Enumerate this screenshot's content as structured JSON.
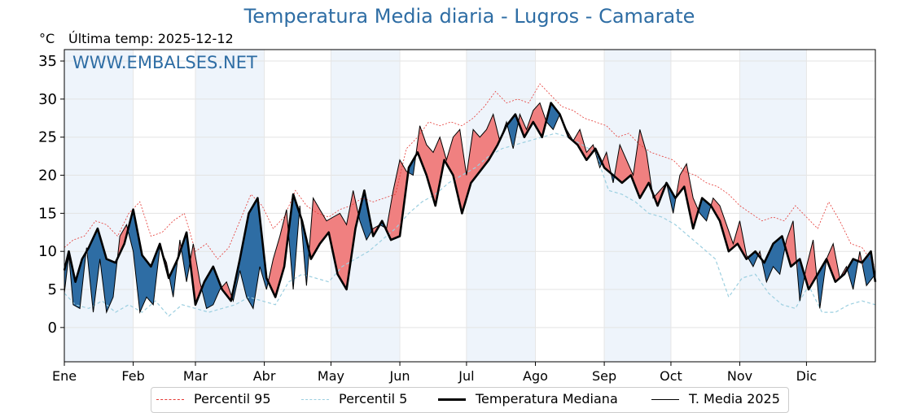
{
  "title": "Temperatura Media diaria - Lugros - Camarate",
  "unit_label": "°C",
  "last_temp_label": "Última temp: 2025-12-12",
  "watermark": "WWW.EMBALSES.NET",
  "colors": {
    "title": "#2e6da4",
    "p95": "#e53935",
    "p5": "#9ccfe0",
    "median": "#000000",
    "current": "#000000",
    "fill_above": "#f08080",
    "fill_below": "#2e6da4",
    "band": "#eef4fb"
  },
  "legend": {
    "p95": "Percentil 95",
    "p5": "Percentil 5",
    "median": "Temperatura Mediana",
    "current": "T. Media 2025"
  },
  "chart_data": {
    "type": "line",
    "title": "Temperatura Media diaria - Lugros - Camarate",
    "ylabel": "°C",
    "ylim": [
      -4.5,
      36.5
    ],
    "yticks": [
      0,
      5,
      10,
      15,
      20,
      25,
      30,
      35
    ],
    "xlim": [
      1,
      366
    ],
    "month_ticks": [
      {
        "label": "Ene",
        "day": 1
      },
      {
        "label": "Feb",
        "day": 32
      },
      {
        "label": "Mar",
        "day": 60
      },
      {
        "label": "Abr",
        "day": 91
      },
      {
        "label": "May",
        "day": 121
      },
      {
        "label": "Jun",
        "day": 152
      },
      {
        "label": "Jul",
        "day": 182
      },
      {
        "label": "Ago",
        "day": 213
      },
      {
        "label": "Sep",
        "day": 244
      },
      {
        "label": "Oct",
        "day": 274
      },
      {
        "label": "Nov",
        "day": 305
      },
      {
        "label": "Dic",
        "day": 335
      }
    ],
    "grid": true,
    "legend_position": "bottom",
    "series": [
      {
        "name": "Temperatura Mediana",
        "x": [
          1,
          3,
          6,
          9,
          12,
          16,
          20,
          24,
          28,
          32,
          36,
          40,
          44,
          48,
          52,
          56,
          60,
          64,
          68,
          72,
          76,
          80,
          84,
          88,
          92,
          96,
          100,
          104,
          108,
          112,
          116,
          120,
          124,
          128,
          132,
          136,
          140,
          144,
          148,
          152,
          156,
          160,
          164,
          168,
          172,
          176,
          180,
          184,
          188,
          192,
          196,
          200,
          204,
          208,
          212,
          216,
          220,
          224,
          228,
          232,
          236,
          240,
          244,
          248,
          252,
          256,
          260,
          264,
          268,
          272,
          276,
          280,
          284,
          288,
          292,
          296,
          300,
          304,
          308,
          312,
          316,
          320,
          324,
          328,
          332,
          336,
          340,
          344,
          348,
          352,
          356,
          360,
          364,
          366
        ],
        "y": [
          7.5,
          10.0,
          6.0,
          9.0,
          10.5,
          13.0,
          9.0,
          8.5,
          11.0,
          15.5,
          9.5,
          8.0,
          11.0,
          6.5,
          9.0,
          12.5,
          3.0,
          6.0,
          8.0,
          5.0,
          3.5,
          9.0,
          15.0,
          17.0,
          6.5,
          4.0,
          8.0,
          17.5,
          14.0,
          9.0,
          11.0,
          12.5,
          7.0,
          5.0,
          13.0,
          18.0,
          12.0,
          14.0,
          11.5,
          12.0,
          21.0,
          23.0,
          20.0,
          16.0,
          22.0,
          20.0,
          15.0,
          19.0,
          20.5,
          22.0,
          24.0,
          26.5,
          28.0,
          25.0,
          27.0,
          25.0,
          29.5,
          28.0,
          25.0,
          24.0,
          22.0,
          23.5,
          21.0,
          20.0,
          19.0,
          20.0,
          17.0,
          19.0,
          16.0,
          19.0,
          17.0,
          18.5,
          13.0,
          17.0,
          16.0,
          14.0,
          10.0,
          11.0,
          9.0,
          10.0,
          8.5,
          11.0,
          12.0,
          8.0,
          9.0,
          5.0,
          7.0,
          9.0,
          6.0,
          7.0,
          9.0,
          8.5,
          10.0,
          6.0
        ]
      },
      {
        "name": "T. Media 2025",
        "x": [
          1,
          3,
          5,
          8,
          11,
          14,
          17,
          20,
          23,
          26,
          29,
          32,
          35,
          38,
          41,
          44,
          47,
          50,
          53,
          56,
          59,
          62,
          65,
          68,
          71,
          74,
          77,
          80,
          83,
          86,
          89,
          92,
          95,
          98,
          101,
          104,
          107,
          110,
          113,
          116,
          119,
          122,
          125,
          128,
          131,
          134,
          137,
          140,
          143,
          146,
          149,
          152,
          155,
          158,
          161,
          164,
          167,
          170,
          173,
          176,
          179,
          182,
          185,
          188,
          191,
          194,
          197,
          200,
          203,
          206,
          209,
          212,
          215,
          218,
          221,
          224,
          227,
          230,
          233,
          236,
          239,
          242,
          245,
          248,
          251,
          254,
          257,
          260,
          263,
          266,
          269,
          272,
          275,
          278,
          281,
          284,
          287,
          290,
          293,
          296,
          299,
          302,
          305,
          308,
          311,
          314,
          317,
          320,
          323,
          326,
          329,
          332,
          335,
          338,
          341,
          344,
          347,
          350,
          353,
          356,
          359,
          362,
          366
        ],
        "y": [
          4.5,
          9.5,
          3.0,
          2.5,
          10.5,
          2.0,
          9.0,
          2.0,
          4.0,
          12.0,
          13.5,
          10.0,
          2.0,
          4.0,
          3.0,
          10.5,
          8.5,
          4.0,
          11.5,
          6.0,
          11.0,
          6.0,
          2.5,
          3.0,
          5.0,
          6.0,
          3.5,
          7.5,
          4.0,
          2.5,
          8.0,
          5.0,
          9.0,
          12.0,
          15.5,
          5.0,
          16.0,
          5.5,
          17.0,
          15.5,
          14.0,
          14.5,
          15.0,
          13.5,
          18.0,
          14.0,
          11.5,
          13.0,
          13.5,
          13.0,
          18.0,
          22.0,
          20.5,
          20.0,
          26.5,
          24.0,
          23.0,
          25.0,
          22.0,
          25.0,
          26.0,
          20.0,
          26.0,
          25.0,
          26.0,
          28.0,
          24.5,
          27.0,
          23.5,
          28.0,
          26.0,
          28.5,
          29.5,
          27.0,
          26.0,
          28.0,
          26.0,
          24.5,
          26.0,
          23.0,
          24.0,
          21.0,
          23.0,
          19.0,
          24.0,
          22.0,
          20.0,
          26.0,
          23.0,
          17.0,
          18.0,
          19.0,
          15.0,
          20.0,
          21.5,
          17.0,
          15.0,
          14.0,
          17.0,
          16.0,
          13.5,
          11.0,
          14.0,
          9.5,
          8.0,
          10.0,
          6.0,
          8.0,
          7.0,
          11.5,
          14.0,
          3.5,
          8.0,
          11.5,
          2.5,
          9.0,
          11.0,
          6.5,
          8.0,
          5.0,
          10.0,
          5.5,
          7.0
        ]
      },
      {
        "name": "Percentil 95",
        "x": [
          1,
          5,
          10,
          15,
          20,
          25,
          30,
          35,
          40,
          45,
          50,
          55,
          60,
          65,
          70,
          75,
          80,
          85,
          90,
          95,
          100,
          105,
          110,
          115,
          120,
          125,
          130,
          135,
          140,
          145,
          150,
          155,
          160,
          165,
          170,
          175,
          180,
          185,
          190,
          195,
          200,
          205,
          210,
          215,
          220,
          225,
          230,
          235,
          240,
          245,
          250,
          255,
          260,
          265,
          270,
          275,
          280,
          285,
          290,
          295,
          300,
          305,
          310,
          315,
          320,
          325,
          330,
          335,
          340,
          345,
          350,
          355,
          360,
          366
        ],
        "y": [
          10.5,
          11.5,
          12.0,
          14.0,
          13.5,
          12.0,
          15.0,
          16.5,
          12.0,
          12.5,
          14.0,
          15.0,
          10.0,
          11.0,
          9.0,
          10.5,
          14.0,
          17.5,
          16.0,
          13.0,
          14.5,
          18.0,
          16.0,
          15.0,
          14.5,
          15.5,
          16.0,
          17.0,
          16.5,
          17.0,
          17.5,
          23.5,
          25.0,
          27.0,
          26.5,
          27.0,
          26.5,
          27.5,
          29.0,
          31.0,
          29.5,
          30.0,
          29.5,
          32.0,
          30.5,
          29.0,
          28.5,
          27.5,
          27.0,
          26.5,
          25.0,
          25.5,
          24.0,
          23.0,
          22.5,
          22.0,
          20.5,
          20.0,
          19.0,
          18.5,
          17.5,
          16.0,
          15.0,
          14.0,
          14.5,
          14.0,
          16.0,
          14.5,
          13.0,
          16.5,
          14.0,
          11.0,
          10.5,
          8.0
        ]
      },
      {
        "name": "Percentil 5",
        "x": [
          1,
          6,
          12,
          18,
          24,
          30,
          36,
          42,
          48,
          54,
          60,
          66,
          72,
          78,
          84,
          90,
          96,
          102,
          108,
          114,
          120,
          126,
          132,
          138,
          144,
          150,
          156,
          162,
          168,
          174,
          180,
          186,
          192,
          198,
          204,
          210,
          216,
          222,
          228,
          234,
          240,
          246,
          252,
          258,
          264,
          270,
          276,
          282,
          288,
          294,
          300,
          306,
          312,
          318,
          324,
          330,
          336,
          342,
          348,
          354,
          360,
          366
        ],
        "y": [
          4.5,
          3.0,
          2.5,
          3.5,
          2.0,
          3.0,
          2.0,
          3.5,
          1.5,
          3.0,
          2.5,
          2.0,
          2.5,
          3.0,
          4.0,
          3.5,
          3.0,
          6.0,
          7.0,
          6.5,
          6.0,
          8.0,
          9.0,
          10.0,
          11.5,
          13.0,
          15.0,
          16.5,
          17.5,
          19.0,
          20.0,
          21.0,
          22.5,
          23.5,
          24.0,
          24.5,
          25.0,
          25.5,
          25.0,
          24.0,
          23.0,
          18.0,
          17.5,
          16.5,
          15.0,
          14.5,
          13.5,
          12.0,
          10.5,
          9.0,
          4.0,
          6.5,
          7.0,
          4.5,
          3.0,
          2.5,
          5.5,
          2.0,
          2.0,
          3.0,
          3.5,
          3.0
        ]
      }
    ]
  }
}
